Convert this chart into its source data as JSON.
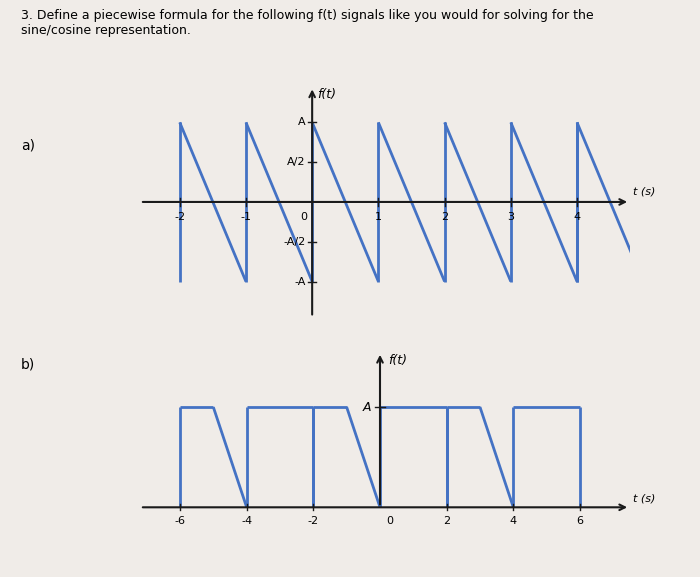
{
  "title_text": "3. Define a piecewise formula for the following f(t) signals like you would for solving for the\nsine/cosine representation.",
  "label_a": "a)",
  "label_b": "b)",
  "signal_color": "#4472C4",
  "line_width": 2.0,
  "background_color": "#f0ece8",
  "text_color": "#000000",
  "axis_color": "#1a1a1a",
  "fig_width": 7.0,
  "fig_height": 5.77,
  "dpi": 100,
  "ax_a": {
    "ylabel": "f(t)",
    "xlabel": "t (s)",
    "ytick_vals": [
      -1,
      -0.5,
      0.5,
      1
    ],
    "ytick_labels": [
      "-A",
      "-A/2",
      "A/2",
      "A"
    ],
    "xticks": [
      -2,
      -1,
      1,
      2,
      3,
      4
    ],
    "xlim": [
      -2.6,
      4.8
    ],
    "ylim": [
      -1.45,
      1.45
    ]
  },
  "ax_b": {
    "ylabel": "f(t)",
    "xlabel": "t (s)",
    "ytick_val": 1,
    "ytick_label": "A",
    "xticks": [
      -6,
      -4,
      -2,
      2,
      4,
      6
    ],
    "xlim": [
      -7.2,
      7.5
    ],
    "ylim": [
      -0.35,
      1.55
    ]
  }
}
